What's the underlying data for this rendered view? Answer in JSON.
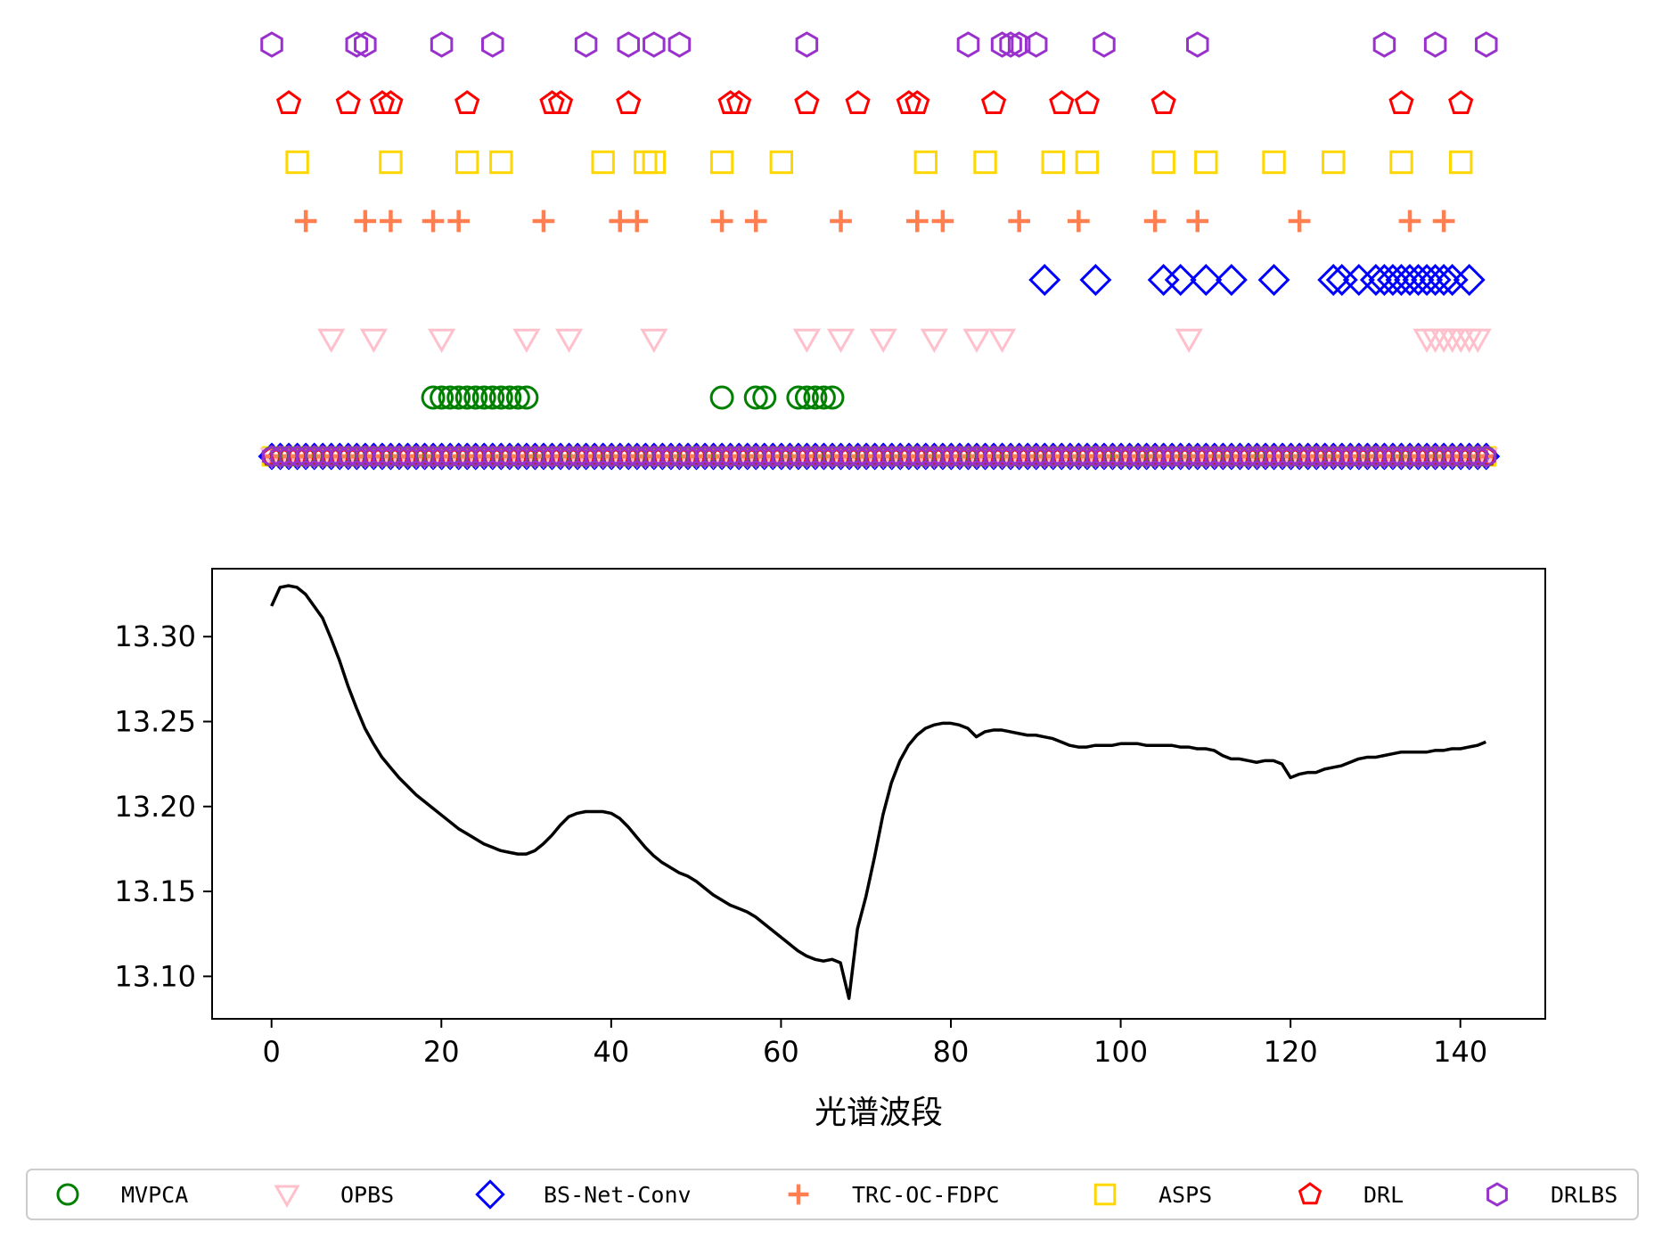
{
  "chart_data": [
    {
      "type": "scatter",
      "title": "",
      "xlabel": "",
      "ylabel": "",
      "axes_visible": false,
      "baseline_row": "all bands 0–143 marked by every method",
      "series": [
        {
          "name": "DRLBS",
          "marker": "hexagon",
          "color": "#9932CC",
          "row": 7,
          "x": [
            0,
            10,
            11,
            20,
            26,
            37,
            42,
            45,
            48,
            63,
            82,
            86,
            87,
            88,
            90,
            98,
            109,
            131,
            137,
            143
          ]
        },
        {
          "name": "DRL",
          "marker": "pentagon",
          "color": "#FF0000",
          "row": 6,
          "x": [
            2,
            9,
            13,
            14,
            23,
            33,
            34,
            42,
            54,
            55,
            63,
            69,
            75,
            76,
            85,
            93,
            96,
            105,
            133,
            140
          ]
        },
        {
          "name": "ASPS",
          "marker": "square",
          "color": "#FFD700",
          "row": 5,
          "x": [
            3,
            14,
            23,
            27,
            39,
            44,
            45,
            53,
            60,
            77,
            84,
            92,
            96,
            105,
            110,
            118,
            125,
            133,
            140
          ]
        },
        {
          "name": "TRC-OC-FDPC",
          "marker": "plus",
          "color": "#FF7F50",
          "row": 4,
          "x": [
            4,
            11,
            14,
            19,
            22,
            32,
            41,
            43,
            53,
            57,
            67,
            76,
            79,
            88,
            95,
            104,
            109,
            121,
            134,
            138
          ]
        },
        {
          "name": "BS-Net-Conv",
          "marker": "diamond",
          "color": "#0000FF",
          "row": 3,
          "x": [
            91,
            97,
            105,
            107,
            110,
            113,
            118,
            125,
            126,
            128,
            130,
            131,
            132,
            133,
            134,
            135,
            136,
            137,
            138,
            139,
            141
          ]
        },
        {
          "name": "OPBS",
          "marker": "triangle-down",
          "color": "#FFC0CB",
          "row": 2,
          "x": [
            7,
            12,
            20,
            30,
            35,
            45,
            63,
            67,
            72,
            78,
            83,
            86,
            108,
            136,
            137,
            138,
            139,
            140,
            141,
            142
          ]
        },
        {
          "name": "MVPCA",
          "marker": "circle",
          "color": "#008000",
          "row": 1,
          "x": [
            19,
            20,
            21,
            22,
            23,
            24,
            25,
            26,
            27,
            28,
            29,
            30,
            53,
            57,
            58,
            62,
            63,
            64,
            65,
            66
          ]
        }
      ],
      "baseline_x_range": [
        0,
        143
      ]
    },
    {
      "type": "line",
      "title": "",
      "xlabel": "光谱波段",
      "ylabel": "",
      "xlim": [
        -7,
        150
      ],
      "ylim": [
        13.075,
        13.34
      ],
      "xticks": [
        0,
        20,
        40,
        60,
        80,
        100,
        120,
        140
      ],
      "xtick_labels": [
        "0",
        "20",
        "40",
        "60",
        "80",
        "100",
        "120",
        "140"
      ],
      "yticks": [
        13.1,
        13.15,
        13.2,
        13.25,
        13.3
      ],
      "ytick_labels": [
        "13.10",
        "13.15",
        "13.20",
        "13.25",
        "13.30"
      ],
      "grid": false,
      "series": [
        {
          "color": "#000000",
          "x": [
            0,
            1,
            2,
            3,
            4,
            5,
            6,
            7,
            8,
            9,
            10,
            11,
            12,
            13,
            14,
            15,
            16,
            17,
            18,
            19,
            20,
            21,
            22,
            23,
            24,
            25,
            26,
            27,
            28,
            29,
            30,
            31,
            32,
            33,
            34,
            35,
            36,
            37,
            38,
            39,
            40,
            41,
            42,
            43,
            44,
            45,
            46,
            47,
            48,
            49,
            50,
            51,
            52,
            53,
            54,
            55,
            56,
            57,
            58,
            59,
            60,
            61,
            62,
            63,
            64,
            65,
            66,
            67,
            68,
            69,
            70,
            71,
            72,
            73,
            74,
            75,
            76,
            77,
            78,
            79,
            80,
            81,
            82,
            83,
            84,
            85,
            86,
            87,
            88,
            89,
            90,
            91,
            92,
            93,
            94,
            95,
            96,
            97,
            98,
            99,
            100,
            101,
            102,
            103,
            104,
            105,
            106,
            107,
            108,
            109,
            110,
            111,
            112,
            113,
            114,
            115,
            116,
            117,
            118,
            119,
            120,
            121,
            122,
            123,
            124,
            125,
            126,
            127,
            128,
            129,
            130,
            131,
            132,
            133,
            134,
            135,
            136,
            137,
            138,
            139,
            140,
            141,
            142,
            143
          ],
          "y": [
            13.318,
            13.329,
            13.33,
            13.329,
            13.325,
            13.318,
            13.311,
            13.299,
            13.286,
            13.271,
            13.258,
            13.246,
            13.237,
            13.229,
            13.223,
            13.217,
            13.212,
            13.207,
            13.203,
            13.199,
            13.195,
            13.191,
            13.187,
            13.184,
            13.181,
            13.178,
            13.176,
            13.174,
            13.173,
            13.172,
            13.172,
            13.174,
            13.178,
            13.183,
            13.189,
            13.194,
            13.196,
            13.197,
            13.197,
            13.197,
            13.196,
            13.193,
            13.188,
            13.182,
            13.176,
            13.171,
            13.167,
            13.164,
            13.161,
            13.159,
            13.156,
            13.152,
            13.148,
            13.145,
            13.142,
            13.14,
            13.138,
            13.135,
            13.131,
            13.127,
            13.123,
            13.119,
            13.115,
            13.112,
            13.11,
            13.109,
            13.11,
            13.108,
            13.087,
            13.128,
            13.147,
            13.17,
            13.195,
            13.214,
            13.227,
            13.236,
            13.242,
            13.246,
            13.248,
            13.249,
            13.249,
            13.248,
            13.246,
            13.241,
            13.244,
            13.245,
            13.245,
            13.244,
            13.243,
            13.242,
            13.242,
            13.241,
            13.24,
            13.238,
            13.236,
            13.235,
            13.235,
            13.236,
            13.236,
            13.236,
            13.237,
            13.237,
            13.237,
            13.236,
            13.236,
            13.236,
            13.236,
            13.235,
            13.235,
            13.234,
            13.234,
            13.233,
            13.23,
            13.228,
            13.228,
            13.227,
            13.226,
            13.227,
            13.227,
            13.225,
            13.217,
            13.219,
            13.22,
            13.22,
            13.222,
            13.223,
            13.224,
            13.226,
            13.228,
            13.229,
            13.229,
            13.23,
            13.231,
            13.232,
            13.232,
            13.232,
            13.232,
            13.233,
            13.233,
            13.234,
            13.234,
            13.235,
            13.236,
            13.238
          ]
        }
      ]
    }
  ],
  "legend": {
    "placement": "bottom",
    "entries": [
      {
        "label": "MVPCA",
        "marker": "circle",
        "color": "#008000"
      },
      {
        "label": "OPBS",
        "marker": "triangle-down",
        "color": "#FFC0CB"
      },
      {
        "label": "BS-Net-Conv",
        "marker": "diamond",
        "color": "#0000FF"
      },
      {
        "label": "TRC-OC-FDPC",
        "marker": "plus",
        "color": "#FF7F50"
      },
      {
        "label": "ASPS",
        "marker": "square",
        "color": "#FFD700"
      },
      {
        "label": "DRL",
        "marker": "pentagon",
        "color": "#FF0000"
      },
      {
        "label": "DRLBS",
        "marker": "hexagon",
        "color": "#9932CC"
      }
    ]
  }
}
